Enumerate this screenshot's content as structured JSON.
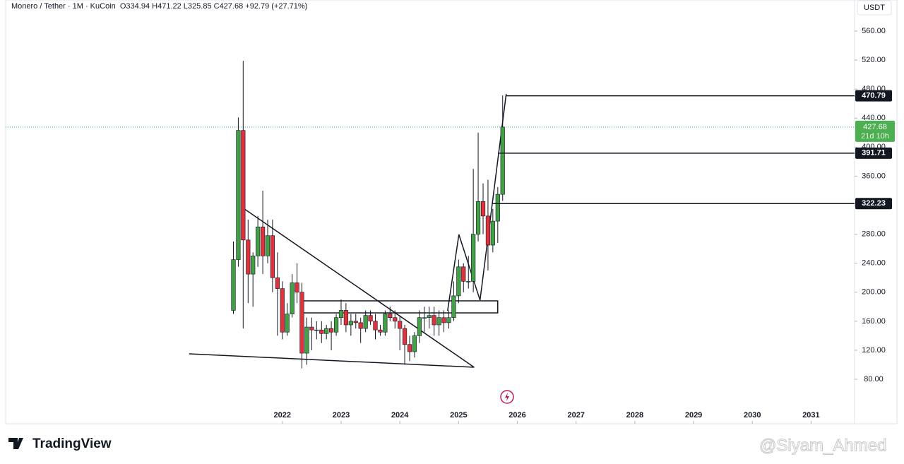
{
  "header": {
    "symbol": "Monero / Tether · 1M · KuCoin",
    "open": "O334.94",
    "high": "H471.22",
    "low": "L325.85",
    "close": "C427.68",
    "change": "+92.79 (+27.71%)"
  },
  "chart_data": {
    "type": "candlestick",
    "x": [
      2021.167,
      2021.25,
      2021.333,
      2021.417,
      2021.5,
      2021.583,
      2021.667,
      2021.75,
      2021.833,
      2021.917,
      2022.0,
      2022.083,
      2022.167,
      2022.25,
      2022.333,
      2022.417,
      2022.5,
      2022.583,
      2022.667,
      2022.75,
      2022.833,
      2022.917,
      2023.0,
      2023.083,
      2023.167,
      2023.25,
      2023.333,
      2023.417,
      2023.5,
      2023.583,
      2023.667,
      2023.75,
      2023.833,
      2023.917,
      2024.0,
      2024.083,
      2024.167,
      2024.25,
      2024.333,
      2024.417,
      2024.5,
      2024.583,
      2024.667,
      2024.75,
      2024.833,
      2024.917,
      2025.0,
      2025.083,
      2025.167,
      2025.25,
      2025.333,
      2025.417,
      2025.5,
      2025.583,
      2025.667,
      2025.75
    ],
    "open": [
      175,
      245,
      423,
      272,
      225,
      250,
      290,
      250,
      278,
      220,
      205,
      145,
      170,
      213,
      200,
      116,
      152,
      148,
      148,
      143,
      150,
      145,
      165,
      175,
      155,
      160,
      158,
      150,
      168,
      160,
      148,
      145,
      170,
      165,
      160,
      150,
      128,
      118,
      140,
      165,
      165,
      168,
      155,
      165,
      158,
      165,
      195,
      235,
      215,
      215,
      280,
      325,
      305,
      265,
      298,
      334.94
    ],
    "high": [
      270,
      441,
      519,
      300,
      255,
      305,
      340,
      300,
      300,
      255,
      215,
      185,
      225,
      240,
      213,
      165,
      165,
      160,
      160,
      155,
      160,
      170,
      190,
      185,
      170,
      170,
      165,
      175,
      175,
      170,
      155,
      175,
      180,
      175,
      168,
      155,
      140,
      145,
      175,
      180,
      180,
      180,
      175,
      175,
      175,
      215,
      245,
      240,
      250,
      370,
      420,
      350,
      355,
      315,
      345,
      471.22
    ],
    "low": [
      170,
      235,
      150,
      185,
      180,
      235,
      225,
      240,
      200,
      140,
      135,
      140,
      165,
      185,
      95,
      100,
      120,
      135,
      130,
      135,
      120,
      140,
      155,
      145,
      140,
      150,
      130,
      145,
      155,
      135,
      140,
      140,
      160,
      150,
      120,
      100,
      105,
      110,
      130,
      145,
      150,
      140,
      140,
      145,
      150,
      160,
      185,
      200,
      205,
      200,
      270,
      280,
      230,
      255,
      268,
      325.85
    ],
    "close": [
      245,
      423,
      272,
      225,
      250,
      290,
      250,
      278,
      220,
      205,
      145,
      170,
      213,
      200,
      116,
      152,
      148,
      148,
      143,
      150,
      145,
      165,
      175,
      155,
      160,
      158,
      150,
      168,
      160,
      148,
      145,
      170,
      165,
      160,
      150,
      128,
      118,
      140,
      165,
      165,
      168,
      155,
      165,
      158,
      165,
      195,
      235,
      215,
      215,
      280,
      325,
      305,
      265,
      298,
      335,
      427.68
    ],
    "up_color": "#43a047",
    "down_color": "#e0323c",
    "currency": "USDT",
    "xlim": [
      2017.29,
      2031.74
    ],
    "xticks": [
      2022,
      2023,
      2024,
      2025,
      2026,
      2027,
      2028,
      2029,
      2030,
      2031
    ],
    "ylim": [
      18.7,
      602.8
    ],
    "yticks": [
      {
        "value": 80,
        "label": "80.00"
      },
      {
        "value": 120,
        "label": "120.00"
      },
      {
        "value": 160,
        "label": "160.00"
      },
      {
        "value": 200,
        "label": "200.00"
      },
      {
        "value": 240,
        "label": "240.00"
      },
      {
        "value": 280,
        "label": "280.00"
      },
      {
        "value": 320,
        "label": "320.00"
      },
      {
        "value": 360,
        "label": "360.00"
      },
      {
        "value": 400,
        "label": "400.00"
      },
      {
        "value": 440,
        "label": "440.00"
      },
      {
        "value": 480,
        "label": "480.00"
      },
      {
        "value": 520,
        "label": "520.00"
      },
      {
        "value": 560,
        "label": "560.00"
      }
    ],
    "last_price": 427.68,
    "countdown": "21d 10h",
    "levels": [
      {
        "price": 470.79,
        "from": 2025.81
      },
      {
        "price": 391.71,
        "from": 2025.67
      },
      {
        "price": 322.23,
        "from": 2025.58
      }
    ],
    "zone": {
      "x": [
        2022.337,
        2025.666
      ],
      "y": [
        171.5,
        188.1
      ]
    },
    "trendlines": [
      [
        2021.339,
        315.6,
        2025.264,
        96.6
      ],
      [
        2020.413,
        115.1,
        2025.264,
        96.6
      ],
      [
        2024.813,
        174.4,
        2025.005,
        279.6
      ],
      [
        2025.005,
        279.6,
        2025.365,
        189.0
      ],
      [
        2025.365,
        189.0,
        2025.81,
        473.3
      ]
    ]
  },
  "branding": "TradingView",
  "watermark": "@Siyam_Ahmed"
}
